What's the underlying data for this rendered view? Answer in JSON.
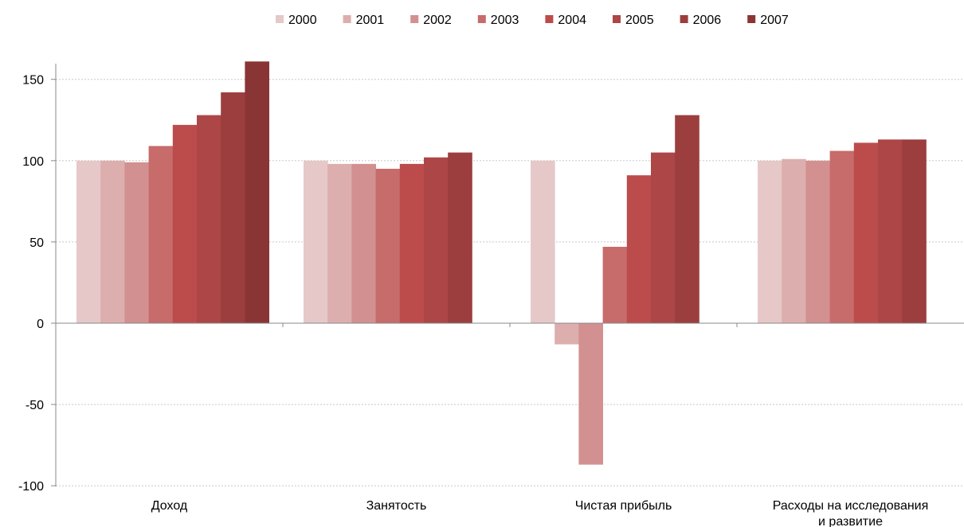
{
  "chart_data": {
    "type": "bar",
    "title": "",
    "xlabel": "",
    "ylabel": "",
    "categories": [
      [
        "Доход"
      ],
      [
        "Занятость"
      ],
      [
        "Чистая прибыль"
      ],
      [
        "Расходы на исследования",
        "и развитие"
      ]
    ],
    "series": [
      {
        "name": "2000",
        "color": "#E6C8C8",
        "values": [
          100,
          100,
          100,
          100
        ]
      },
      {
        "name": "2001",
        "color": "#DDAEAE",
        "values": [
          100,
          98,
          -13,
          101
        ]
      },
      {
        "name": "2002",
        "color": "#D39090",
        "values": [
          99,
          98,
          -87,
          100
        ]
      },
      {
        "name": "2003",
        "color": "#C76B6B",
        "values": [
          109,
          95,
          47,
          106
        ]
      },
      {
        "name": "2004",
        "color": "#BC4C4C",
        "values": [
          122,
          98,
          91,
          111
        ]
      },
      {
        "name": "2005",
        "color": "#AD4646",
        "values": [
          128,
          102,
          105,
          113
        ]
      },
      {
        "name": "2006",
        "color": "#9C3E3E",
        "values": [
          142,
          105,
          128,
          113
        ]
      },
      {
        "name": "2007",
        "color": "#8A3535",
        "values": [
          161,
          null,
          null,
          null
        ]
      }
    ],
    "ylim": [
      -100,
      160
    ],
    "yticks": [
      -100,
      -50,
      0,
      50,
      100,
      150
    ],
    "grid": true,
    "legend": "top-center"
  }
}
